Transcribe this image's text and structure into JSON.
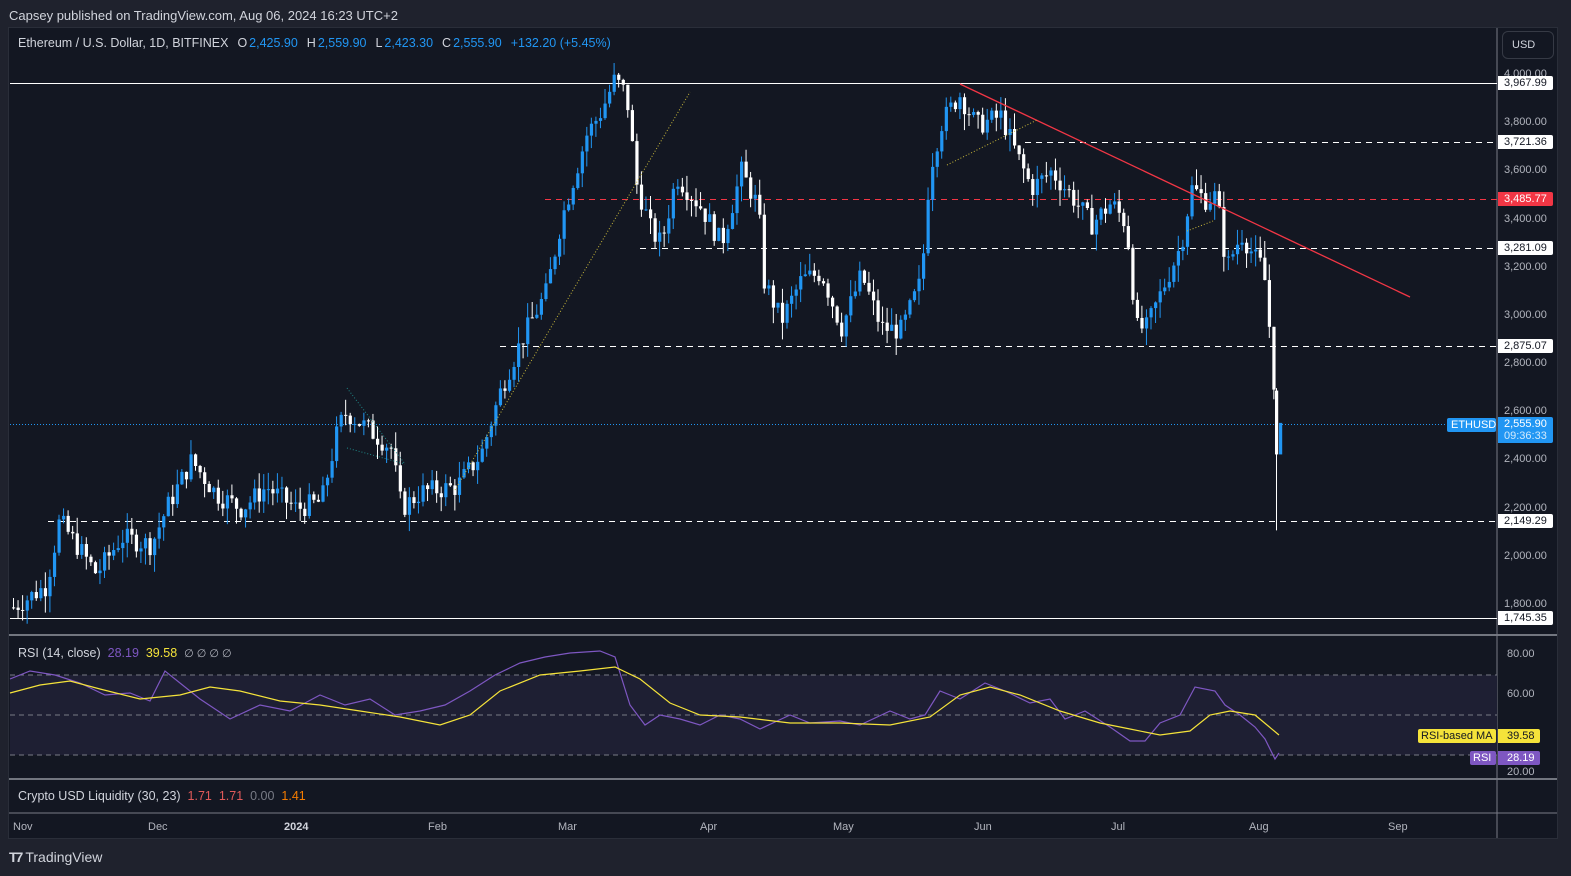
{
  "header": {
    "published": "Capsey published on TradingView.com, Aug 06, 2024 16:23 UTC+2"
  },
  "symbol": {
    "title": "Ethereum / U.S. Dollar, 1D, BITFINEX",
    "o_label": "O",
    "o": "2,425.90",
    "h_label": "H",
    "h": "2,559.90",
    "l_label": "L",
    "l": "2,423.30",
    "c_label": "C",
    "c": "2,555.90",
    "change": "+132.20 (+5.45%)"
  },
  "currency_button": "USD",
  "price_axis": {
    "ticks": [
      "4,000.00",
      "3,800.00",
      "3,600.00",
      "3,400.00",
      "3,200.00",
      "3,000.00",
      "2,800.00",
      "2,600.00",
      "2,400.00",
      "2,200.00",
      "2,000.00",
      "1,800.00"
    ],
    "level_tags": [
      "3,967.99",
      "3,721.36",
      "3,485.77",
      "3,281.09",
      "2,875.07",
      "2,149.29",
      "1,745.35"
    ],
    "resistance_tag": "3,485.77",
    "last_price": "2,555.90",
    "countdown": "09:36:33",
    "symbol_tag": "ETHUSD"
  },
  "rsi": {
    "title": "RSI (14, close)",
    "value": "28.19",
    "ma_value": "39.58",
    "extras": "∅ ∅ ∅ ∅",
    "axis_ticks": [
      "80.00",
      "60.00",
      "20.00"
    ],
    "ma_tag_label": "RSI-based MA",
    "rsi_tag_label": "RSI"
  },
  "liquidity": {
    "title": "Crypto USD Liquidity (30, 23)",
    "v1": "1.71",
    "v2": "1.71",
    "v3": "0.00",
    "v4": "1.41"
  },
  "time_axis": [
    "Nov",
    "Dec",
    "2024",
    "Feb",
    "Mar",
    "Apr",
    "May",
    "Jun",
    "Jul",
    "Aug",
    "Sep"
  ],
  "brand": "TradingView",
  "colors": {
    "up": "#2196f3",
    "down": "#ffffff",
    "resistance": "#f23645",
    "rsi": "#7e57c2",
    "rsi_ma": "#f5e33a",
    "bg": "#131722"
  },
  "chart_data": {
    "type": "candlestick",
    "title": "Ethereum / U.S. Dollar, 1D, BITFINEX",
    "xlabel": "",
    "ylabel": "USD",
    "ylim": [
      1745,
      4100
    ],
    "x_ticks": [
      "Nov",
      "Dec",
      "2024",
      "Feb",
      "Mar",
      "Apr",
      "May",
      "Jun",
      "Jul",
      "Aug",
      "Sep"
    ],
    "horizontal_levels": [
      {
        "price": 3967.99,
        "style": "solid",
        "color": "#ffffff"
      },
      {
        "price": 3721.36,
        "style": "dashed",
        "color": "#ffffff"
      },
      {
        "price": 3485.77,
        "style": "dashed",
        "color": "#f23645"
      },
      {
        "price": 3281.09,
        "style": "dashed",
        "color": "#ffffff"
      },
      {
        "price": 2875.07,
        "style": "dashed",
        "color": "#ffffff"
      },
      {
        "price": 2149.29,
        "style": "dashed",
        "color": "#ffffff"
      },
      {
        "price": 1745.35,
        "style": "solid",
        "color": "#ffffff"
      }
    ],
    "trendline": {
      "from": [
        "2024-05-27",
        3975
      ],
      "to": [
        "2024-08-20",
        3080
      ],
      "color": "#f23645"
    },
    "monthly_approx_close": {
      "Nov": 2050,
      "Dec": 2250,
      "Jan": 2280,
      "Feb": 3380,
      "Mar": 3600,
      "Apr": 3020,
      "May": 3760,
      "Jun": 3430,
      "Jul": 3230,
      "Aug": 2556
    },
    "last_candle": {
      "date": "2024-08-06",
      "open": 2425.9,
      "high": 2559.9,
      "low": 2423.3,
      "close": 2555.9
    },
    "prior_candle_low": 2110,
    "rsi_series": {
      "name": "RSI (14, close)",
      "last": 28.19,
      "ma_last": 39.58,
      "bands": [
        70,
        50,
        30
      ]
    }
  }
}
